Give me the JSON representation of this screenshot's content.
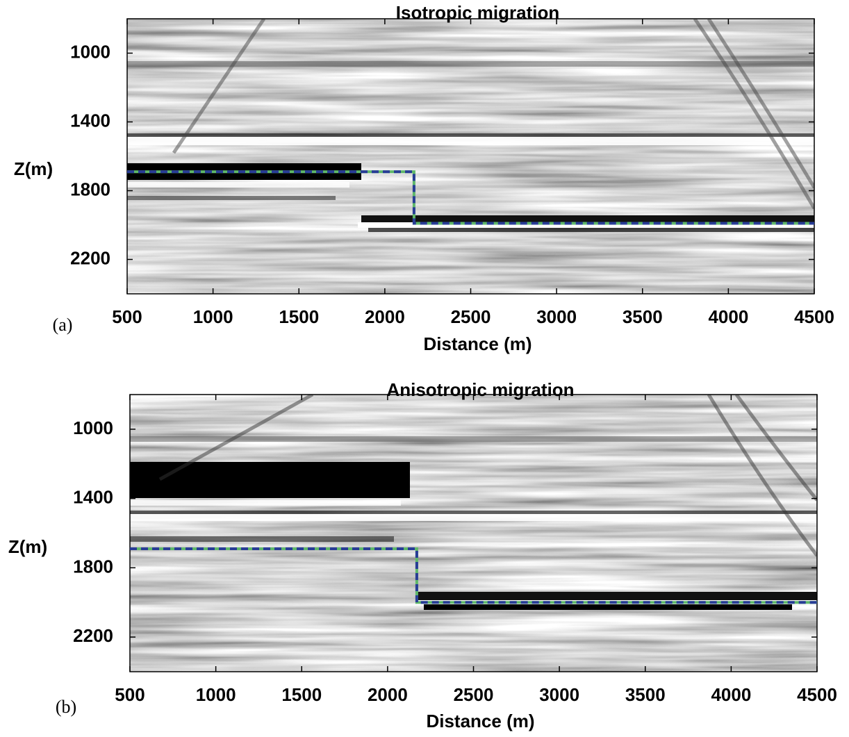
{
  "chart_data": [
    {
      "type": "line",
      "title": "Isotropic migration",
      "xlabel": "Distance (m)",
      "ylabel": "Z(m)",
      "panel": "(a)",
      "x": [
        500,
        2170,
        2170,
        4500
      ],
      "series": [
        {
          "color": "#283c96",
          "values": [
            1690,
            1690,
            1990,
            1990
          ]
        }
      ],
      "xlim": [
        500,
        4500
      ],
      "ylim": [
        2400,
        800
      ],
      "xticks": [
        500,
        1000,
        1500,
        2000,
        2500,
        3000,
        3500,
        4000,
        4500
      ],
      "yticks": [
        1000,
        1400,
        1800,
        2200
      ]
    },
    {
      "type": "line",
      "title": "Anisotropic migration",
      "xlabel": "Distance (m)",
      "ylabel": "Z(m)",
      "panel": "(b)",
      "x": [
        500,
        2170,
        2170,
        4500
      ],
      "series": [
        {
          "color": "#283c96",
          "values": [
            1690,
            1690,
            2000,
            2000
          ]
        }
      ],
      "xlim": [
        500,
        4500
      ],
      "ylim": [
        2400,
        800
      ],
      "xticks": [
        500,
        1000,
        1500,
        2000,
        2500,
        3000,
        3500,
        4000,
        4500
      ],
      "yticks": [
        1000,
        1400,
        1800,
        2200
      ]
    }
  ]
}
